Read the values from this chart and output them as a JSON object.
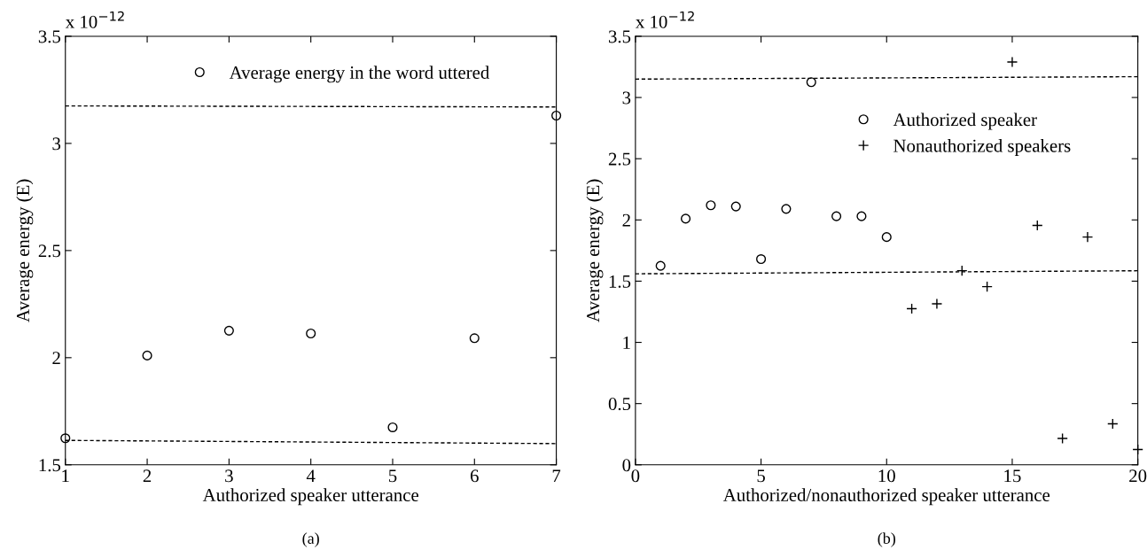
{
  "chart_data": [
    {
      "type": "scatter",
      "xlabel": "Authorized speaker utterance",
      "ylabel": "Average energy (E)",
      "annotations": [
        "x 10$^{−12}$",
        "(a)"
      ],
      "xlim": [
        1,
        7
      ],
      "xticks": [
        1,
        2,
        3,
        4,
        5,
        6,
        7
      ],
      "ylim": [
        1.5,
        3.5
      ],
      "yticks": [
        1.5,
        2,
        2.5,
        3,
        3.5
      ],
      "grid": false,
      "legend": "top",
      "series": [
        {
          "name": "Average energy in the word uttered",
          "color": "#000000",
          "marker": "circle",
          "x": [
            1,
            2,
            3,
            4,
            5,
            6,
            7
          ],
          "values": [
            1.624,
            2.01,
            2.126,
            2.113,
            1.675,
            2.091,
            3.13
          ]
        },
        {
          "type": "line",
          "color": "#000000",
          "line_style": "dashed",
          "x": [
            1,
            7
          ],
          "values": [
            3.175,
            3.17
          ]
        },
        {
          "type": "line",
          "color": "#000000",
          "line_style": "dashed",
          "x": [
            1,
            7
          ],
          "values": [
            1.614,
            1.599
          ]
        }
      ]
    },
    {
      "type": "scatter",
      "xlabel": "Authorized/nonauthorized speaker utterance",
      "ylabel": "Average energy (E)",
      "annotations": [
        "x 10$^{−12}$",
        "(b)"
      ],
      "xlim": [
        0,
        20
      ],
      "xticks": [
        0,
        5,
        10,
        15,
        20
      ],
      "ylim": [
        0,
        3.5
      ],
      "yticks": [
        0,
        0.5,
        1,
        1.5,
        2,
        2.5,
        3,
        3.5
      ],
      "grid": false,
      "legend": "top right",
      "series": [
        {
          "name": "Authorized speaker",
          "color": "#000000",
          "marker": "circle",
          "x": [
            1,
            2,
            3,
            4,
            5,
            6,
            7,
            8,
            9,
            10
          ],
          "values": [
            1.625,
            2.01,
            2.12,
            2.11,
            1.68,
            2.09,
            3.125,
            2.03,
            2.03,
            1.86
          ]
        },
        {
          "name": "Nonauthorized speakers",
          "color": "#000000",
          "marker": "cross",
          "x": [
            11,
            12,
            13,
            14,
            15,
            16,
            17,
            18,
            19,
            20
          ],
          "values": [
            1.275,
            1.315,
            1.585,
            1.455,
            3.29,
            1.955,
            0.215,
            1.86,
            0.335,
            0.125
          ]
        },
        {
          "type": "line",
          "color": "#000000",
          "line_style": "dashed",
          "x": [
            0,
            20
          ],
          "values": [
            3.15,
            3.17
          ]
        },
        {
          "type": "line",
          "color": "#000000",
          "line_style": "dashed",
          "x": [
            0,
            20
          ],
          "values": [
            1.56,
            1.585
          ]
        }
      ]
    }
  ]
}
